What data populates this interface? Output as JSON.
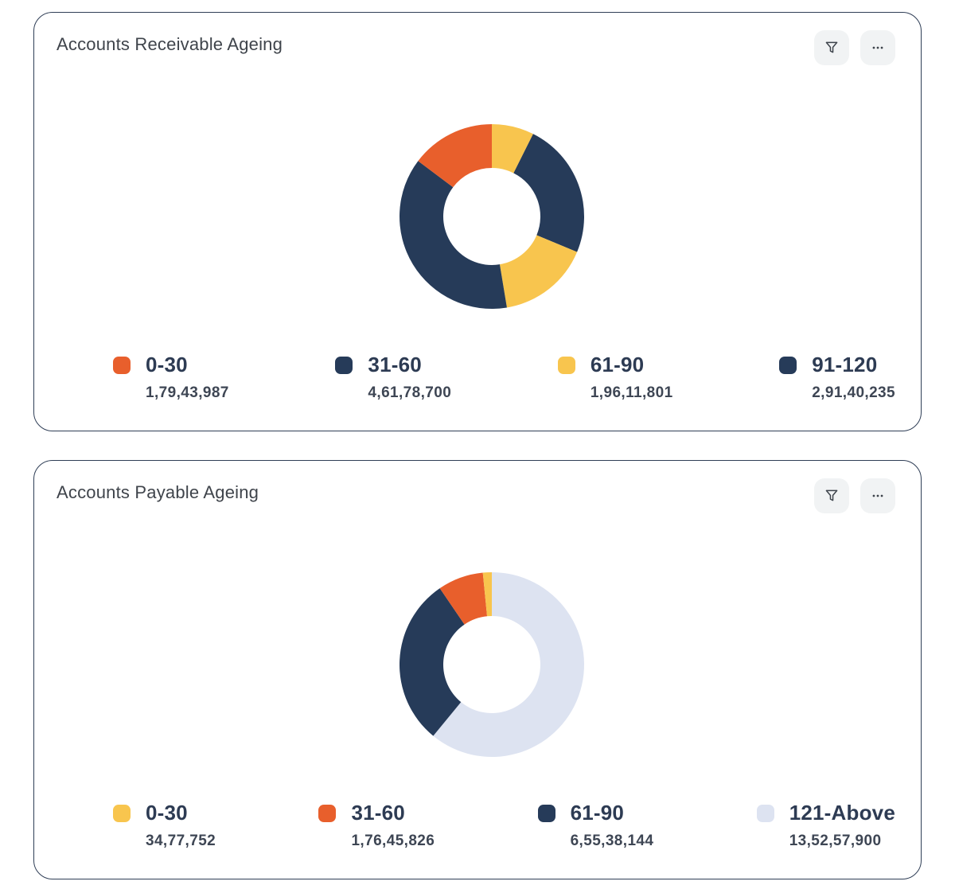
{
  "chart_data": [
    {
      "type": "donut",
      "title": "Accounts Receivable Ageing",
      "categories": [
        "0-30",
        "31-60",
        "61-90",
        "91-120"
      ],
      "values": [
        17943987,
        46178700,
        19611801,
        29140235
      ],
      "values_formatted": [
        "1,79,43,987",
        "4,61,78,700",
        "1,96,11,801",
        "2,91,40,235"
      ],
      "colors": [
        "#e85f2c",
        "#263b59",
        "#f8c54e",
        "#263b59"
      ],
      "legend_position": "bottom",
      "note": "ring also contains an unlabeled yellow segment of about 7% ending at 12 o'clock"
    },
    {
      "type": "donut",
      "title": "Accounts Payable Ageing",
      "categories": [
        "0-30",
        "31-60",
        "61-90",
        "121-Above"
      ],
      "values": [
        3477752,
        17645826,
        65538144,
        135257900
      ],
      "values_formatted": [
        "34,77,752",
        "1,76,45,826",
        "6,55,38,144",
        "13,52,57,900"
      ],
      "colors": [
        "#f8c54e",
        "#e85f2c",
        "#263b59",
        "#dde3f1"
      ],
      "legend_position": "bottom"
    }
  ],
  "colors": {
    "orange": "#e85f2c",
    "navy": "#263b59",
    "yellow": "#f8c54e",
    "lavender": "#dde3f1",
    "card_border": "#2f3e56",
    "button_bg": "#f1f3f4",
    "icon": "#3d434b"
  },
  "cards": [
    {
      "title": "Accounts Receivable Ageing",
      "icons": {
        "filter": "funnel-icon",
        "more": "ellipsis-icon"
      },
      "legend": [
        {
          "label": "0-30",
          "value": "1,79,43,987",
          "color": "#e85f2c"
        },
        {
          "label": "31-60",
          "value": "4,61,78,700",
          "color": "#263b59"
        },
        {
          "label": "61-90",
          "value": "1,96,11,801",
          "color": "#f8c54e"
        },
        {
          "label": "91-120",
          "value": "2,91,40,235",
          "color": "#263b59"
        }
      ],
      "chart": {
        "type": "donut",
        "segments": [
          {
            "name": "unlabeled",
            "color": "#f8c54e",
            "deg": 26.6
          },
          {
            "name": "91-120",
            "color": "#263b59",
            "deg": 86.0
          },
          {
            "name": "61-90",
            "color": "#f8c54e",
            "deg": 58.0
          },
          {
            "name": "31-60",
            "color": "#263b59",
            "deg": 136.4
          },
          {
            "name": "0-30",
            "color": "#e85f2c",
            "deg": 53.0
          }
        ]
      }
    },
    {
      "title": "Accounts Payable Ageing",
      "icons": {
        "filter": "funnel-icon",
        "more": "ellipsis-icon"
      },
      "legend": [
        {
          "label": "0-30",
          "value": "34,77,752",
          "color": "#f8c54e"
        },
        {
          "label": "31-60",
          "value": "1,76,45,826",
          "color": "#e85f2c"
        },
        {
          "label": "61-90",
          "value": "6,55,38,144",
          "color": "#263b59"
        },
        {
          "label": "121-Above",
          "value": "13,52,57,900",
          "color": "#dde3f1"
        }
      ],
      "chart": {
        "type": "donut",
        "segments": [
          {
            "name": "121-Above",
            "color": "#dde3f1",
            "deg": 219.4
          },
          {
            "name": "61-90",
            "color": "#263b59",
            "deg": 106.3
          },
          {
            "name": "31-60",
            "color": "#e85f2c",
            "deg": 28.7
          },
          {
            "name": "0-30",
            "color": "#f8c54e",
            "deg": 5.6
          }
        ]
      }
    }
  ]
}
